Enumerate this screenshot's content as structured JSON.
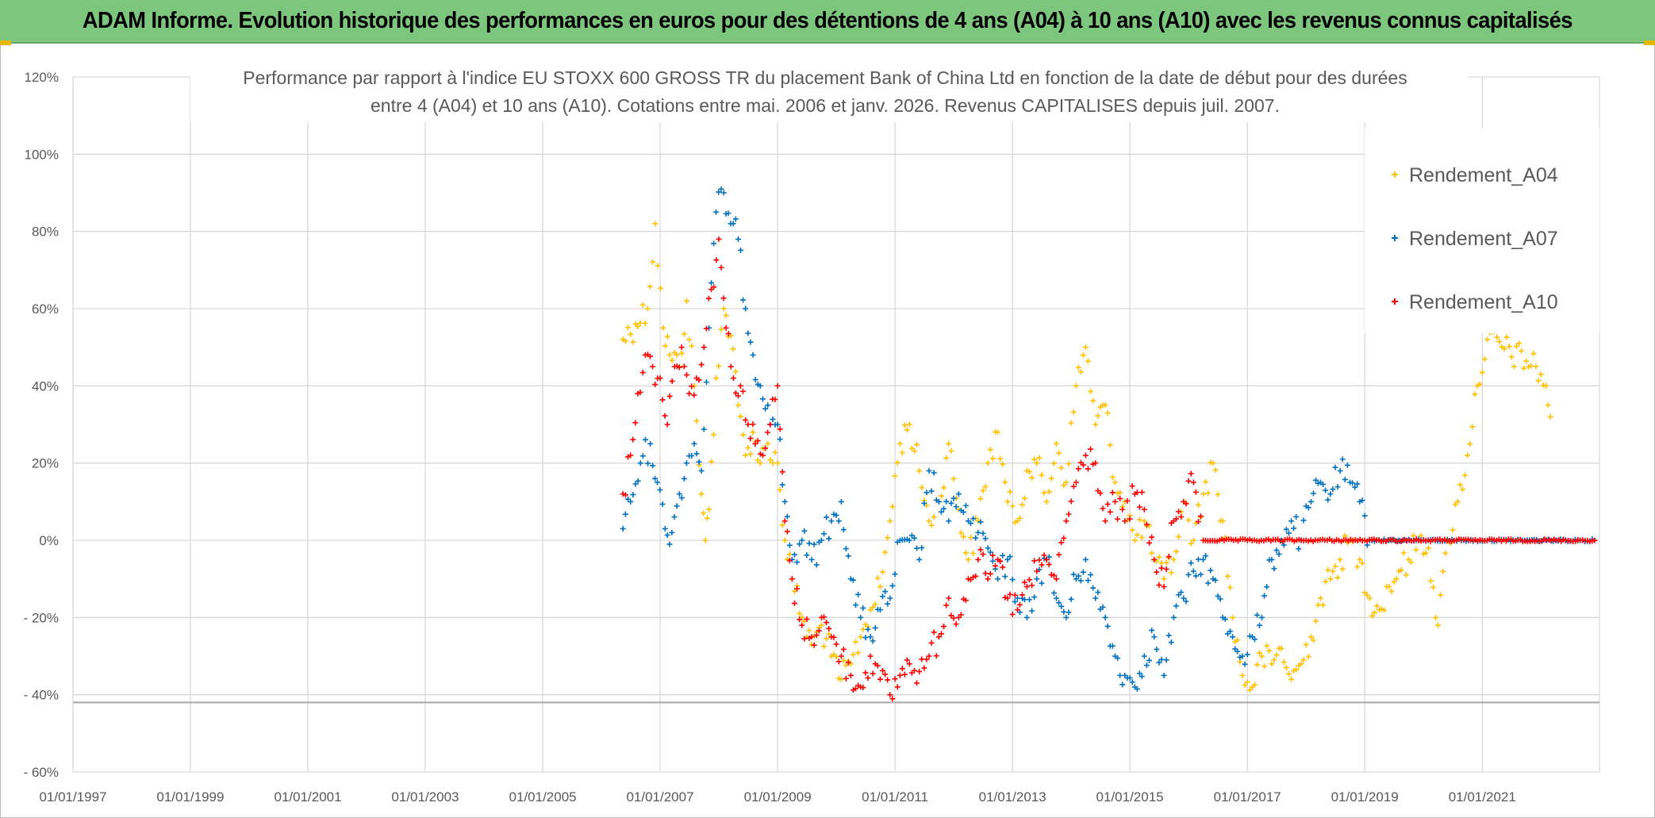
{
  "header": {
    "title": "ADAM Informe. Evolution historique des performances en euros pour des détentions de 4 ans (A04) à 10 ans (A10) avec les revenus connus capitalisés"
  },
  "chart_data": {
    "type": "scatter",
    "title_lines": [
      "Performance par rapport à l'indice EU STOXX 600 GROSS TR  du placement Bank of China Ltd en fonction de la date de début pour des durées",
      "entre 4 (A04) et 10 ans (A10). Cotations entre mai. 2006 et janv. 2026. Revenus CAPITALISES depuis juil. 2007."
    ],
    "xlabel": "",
    "ylabel": "",
    "xlim": [
      "1997-01-01",
      "2022-12-31"
    ],
    "ylim": [
      -0.6,
      1.2
    ],
    "x_tick_labels": [
      "01/01/1997",
      "01/01/1999",
      "01/01/2001",
      "01/01/2003",
      "01/01/2005",
      "01/01/2007",
      "01/01/2009",
      "01/01/2011",
      "01/01/2013",
      "01/01/2015",
      "01/01/2017",
      "01/01/2019",
      "01/01/2021"
    ],
    "y_tick_labels": [
      "- 60%",
      "- 40%",
      "- 20%",
      "0%",
      "20%",
      "40%",
      "60%",
      "80%",
      "100%",
      "120%"
    ],
    "y_tick_values": [
      -0.6,
      -0.4,
      -0.2,
      0,
      0.2,
      0.4,
      0.6,
      0.8,
      1.0,
      1.2
    ],
    "grid": true,
    "legend_position": "top-right",
    "series": [
      {
        "name": "Rendement_A04",
        "color": "#ffc000",
        "marker": "plus",
        "points": [
          [
            "2006-05-15",
            0.52
          ],
          [
            "2006-08-01",
            0.56
          ],
          [
            "2006-10-15",
            0.6
          ],
          [
            "2006-12-01",
            0.82
          ],
          [
            "2007-01-20",
            0.55
          ],
          [
            "2007-03-01",
            0.48
          ],
          [
            "2007-05-01",
            0.45
          ],
          [
            "2007-06-15",
            0.62
          ],
          [
            "2007-08-01",
            0.4
          ],
          [
            "2007-09-15",
            0.12
          ],
          [
            "2007-10-10",
            0.0
          ],
          [
            "2007-11-01",
            0.08
          ],
          [
            "2007-12-15",
            0.42
          ],
          [
            "2008-02-01",
            0.6
          ],
          [
            "2008-03-15",
            0.53
          ],
          [
            "2008-05-01",
            0.35
          ],
          [
            "2008-06-15",
            0.22
          ],
          [
            "2008-08-01",
            0.28
          ],
          [
            "2008-09-15",
            0.2
          ],
          [
            "2008-11-01",
            0.25
          ],
          [
            "2009-01-01",
            0.2
          ],
          [
            "2009-02-15",
            0.0
          ],
          [
            "2009-04-01",
            -0.1
          ],
          [
            "2009-06-01",
            -0.2
          ],
          [
            "2009-08-01",
            -0.27
          ],
          [
            "2009-10-01",
            -0.22
          ],
          [
            "2009-12-01",
            -0.3
          ],
          [
            "2010-02-01",
            -0.36
          ],
          [
            "2010-04-01",
            -0.32
          ],
          [
            "2010-06-01",
            -0.25
          ],
          [
            "2010-08-01",
            -0.18
          ],
          [
            "2010-10-01",
            -0.12
          ],
          [
            "2010-12-01",
            0.05
          ],
          [
            "2011-02-01",
            0.25
          ],
          [
            "2011-04-01",
            0.3
          ],
          [
            "2011-06-01",
            0.18
          ],
          [
            "2011-08-01",
            0.05
          ],
          [
            "2011-10-01",
            0.1
          ],
          [
            "2011-12-01",
            0.25
          ],
          [
            "2012-02-01",
            0.08
          ],
          [
            "2012-04-01",
            -0.05
          ],
          [
            "2012-06-01",
            0.05
          ],
          [
            "2012-08-01",
            0.2
          ],
          [
            "2012-10-01",
            0.28
          ],
          [
            "2012-12-01",
            0.1
          ],
          [
            "2013-02-01",
            0.05
          ],
          [
            "2013-04-01",
            0.18
          ],
          [
            "2013-06-01",
            0.2
          ],
          [
            "2013-08-01",
            0.1
          ],
          [
            "2013-10-01",
            0.25
          ],
          [
            "2013-12-01",
            0.15
          ],
          [
            "2014-02-01",
            0.4
          ],
          [
            "2014-04-01",
            0.5
          ],
          [
            "2014-06-01",
            0.3
          ],
          [
            "2014-08-01",
            0.35
          ],
          [
            "2014-10-01",
            0.15
          ],
          [
            "2014-12-01",
            0.1
          ],
          [
            "2015-02-01",
            0.0
          ],
          [
            "2015-04-01",
            0.05
          ],
          [
            "2015-06-01",
            -0.05
          ],
          [
            "2015-08-01",
            -0.1
          ],
          [
            "2015-10-01",
            -0.05
          ],
          [
            "2015-12-01",
            0.1
          ],
          [
            "2016-02-01",
            0.0
          ],
          [
            "2016-04-01",
            0.12
          ],
          [
            "2016-06-01",
            0.2
          ],
          [
            "2016-08-01",
            0.05
          ],
          [
            "2016-10-01",
            -0.2
          ],
          [
            "2016-12-01",
            -0.35
          ],
          [
            "2017-02-01",
            -0.38
          ],
          [
            "2017-04-01",
            -0.3
          ],
          [
            "2017-06-01",
            -0.32
          ],
          [
            "2017-08-01",
            -0.28
          ],
          [
            "2017-10-01",
            -0.36
          ],
          [
            "2017-12-01",
            -0.32
          ],
          [
            "2018-02-01",
            -0.25
          ],
          [
            "2018-04-01",
            -0.15
          ],
          [
            "2018-06-01",
            -0.1
          ],
          [
            "2018-08-01",
            -0.05
          ],
          [
            "2018-10-01",
            0.0
          ],
          [
            "2018-12-01",
            -0.05
          ],
          [
            "2019-02-01",
            -0.15
          ],
          [
            "2019-04-01",
            -0.18
          ],
          [
            "2019-06-01",
            -0.12
          ],
          [
            "2019-08-01",
            -0.08
          ],
          [
            "2019-10-01",
            -0.05
          ],
          [
            "2019-12-01",
            0.0
          ],
          [
            "2020-02-01",
            -0.02
          ],
          [
            "2020-04-01",
            -0.22
          ],
          [
            "2020-06-01",
            0.0
          ],
          [
            "2020-08-01",
            0.1
          ],
          [
            "2020-10-01",
            0.22
          ],
          [
            "2020-12-01",
            0.4
          ],
          [
            "2021-02-01",
            0.52
          ],
          [
            "2021-12-01",
            0.45
          ],
          [
            "2022-02-01",
            0.4
          ],
          [
            "2022-03-01",
            0.32
          ]
        ]
      },
      {
        "name": "Rendement_A07",
        "color": "#0070c0",
        "marker": "plus",
        "points": [
          [
            "2006-05-15",
            0.03
          ],
          [
            "2006-07-01",
            0.1
          ],
          [
            "2006-09-01",
            0.2
          ],
          [
            "2006-11-01",
            0.25
          ],
          [
            "2006-12-15",
            0.15
          ],
          [
            "2007-02-01",
            0.03
          ],
          [
            "2007-03-15",
            0.02
          ],
          [
            "2007-05-01",
            0.12
          ],
          [
            "2007-06-15",
            0.2
          ],
          [
            "2007-08-01",
            0.25
          ],
          [
            "2007-09-15",
            0.18
          ],
          [
            "2007-11-01",
            0.55
          ],
          [
            "2007-12-15",
            0.85
          ],
          [
            "2008-02-01",
            0.9
          ],
          [
            "2008-03-15",
            0.82
          ],
          [
            "2008-05-01",
            0.78
          ],
          [
            "2008-06-15",
            0.6
          ],
          [
            "2008-08-01",
            0.48
          ],
          [
            "2008-09-15",
            0.4
          ],
          [
            "2008-11-01",
            0.35
          ],
          [
            "2009-01-01",
            0.3
          ],
          [
            "2009-02-15",
            0.1
          ],
          [
            "2009-04-01",
            -0.05
          ],
          [
            "2009-06-01",
            0.0
          ],
          [
            "2009-08-01",
            -0.05
          ],
          [
            "2009-10-01",
            0.0
          ],
          [
            "2009-12-01",
            0.05
          ],
          [
            "2010-02-01",
            0.1
          ],
          [
            "2010-04-01",
            -0.1
          ],
          [
            "2010-06-01",
            -0.2
          ],
          [
            "2010-08-01",
            -0.25
          ],
          [
            "2010-10-01",
            -0.18
          ],
          [
            "2010-12-01",
            -0.15
          ],
          [
            "2011-02-01",
            0.0
          ],
          [
            "2011-04-01",
            0.0
          ],
          [
            "2011-06-01",
            -0.05
          ],
          [
            "2011-08-01",
            0.18
          ],
          [
            "2011-10-01",
            0.1
          ],
          [
            "2011-12-01",
            0.05
          ],
          [
            "2012-02-01",
            0.12
          ],
          [
            "2012-04-01",
            0.05
          ],
          [
            "2012-06-01",
            0.02
          ],
          [
            "2012-08-01",
            -0.02
          ],
          [
            "2012-10-01",
            -0.1
          ],
          [
            "2012-12-01",
            -0.05
          ],
          [
            "2013-02-01",
            -0.15
          ],
          [
            "2013-04-01",
            -0.2
          ],
          [
            "2013-06-01",
            -0.1
          ],
          [
            "2013-08-01",
            -0.05
          ],
          [
            "2013-10-01",
            -0.15
          ],
          [
            "2013-12-01",
            -0.2
          ],
          [
            "2014-02-01",
            -0.1
          ],
          [
            "2014-04-01",
            -0.05
          ],
          [
            "2014-06-01",
            -0.15
          ],
          [
            "2014-08-01",
            -0.2
          ],
          [
            "2014-10-01",
            -0.3
          ],
          [
            "2014-12-01",
            -0.35
          ],
          [
            "2015-02-01",
            -0.38
          ],
          [
            "2015-04-01",
            -0.3
          ],
          [
            "2015-06-01",
            -0.25
          ],
          [
            "2015-08-01",
            -0.35
          ],
          [
            "2015-10-01",
            -0.2
          ],
          [
            "2015-12-01",
            -0.15
          ],
          [
            "2016-02-01",
            -0.08
          ],
          [
            "2016-04-01",
            -0.05
          ],
          [
            "2016-06-01",
            -0.1
          ],
          [
            "2016-08-01",
            -0.2
          ],
          [
            "2016-10-01",
            -0.25
          ],
          [
            "2016-12-01",
            -0.3
          ],
          [
            "2017-02-01",
            -0.25
          ],
          [
            "2017-04-01",
            -0.2
          ],
          [
            "2017-06-01",
            -0.05
          ],
          [
            "2017-08-01",
            0.0
          ],
          [
            "2017-10-01",
            0.05
          ],
          [
            "2017-12-01",
            0.0
          ],
          [
            "2018-02-01",
            0.1
          ],
          [
            "2018-04-01",
            0.15
          ],
          [
            "2018-06-01",
            0.12
          ],
          [
            "2018-08-01",
            0.18
          ],
          [
            "2018-10-01",
            0.15
          ],
          [
            "2018-12-01",
            0.1
          ],
          [
            "2019-02-01",
            0.0
          ],
          [
            "2019-04-01",
            0.0
          ],
          [
            "2019-08-01",
            0.0
          ],
          [
            "2020-02-01",
            0.0
          ],
          [
            "2021-02-01",
            0.0
          ],
          [
            "2022-02-01",
            0.0
          ],
          [
            "2022-12-01",
            0.0
          ]
        ]
      },
      {
        "name": "Rendement_A10",
        "color": "#ff0000",
        "marker": "plus",
        "points": [
          [
            "2006-05-15",
            0.12
          ],
          [
            "2006-07-01",
            0.22
          ],
          [
            "2006-08-15",
            0.38
          ],
          [
            "2006-10-01",
            0.48
          ],
          [
            "2006-11-15",
            0.45
          ],
          [
            "2007-01-01",
            0.42
          ],
          [
            "2007-02-15",
            0.3
          ],
          [
            "2007-04-01",
            0.45
          ],
          [
            "2007-05-15",
            0.5
          ],
          [
            "2007-07-01",
            0.38
          ],
          [
            "2007-08-15",
            0.42
          ],
          [
            "2007-10-01",
            0.5
          ],
          [
            "2007-11-15",
            0.65
          ],
          [
            "2008-01-01",
            0.78
          ],
          [
            "2008-02-15",
            0.55
          ],
          [
            "2008-04-01",
            0.42
          ],
          [
            "2008-05-15",
            0.4
          ],
          [
            "2008-07-01",
            0.3
          ],
          [
            "2008-08-15",
            0.25
          ],
          [
            "2008-10-01",
            0.22
          ],
          [
            "2008-11-15",
            0.3
          ],
          [
            "2009-01-01",
            0.4
          ],
          [
            "2009-02-15",
            0.05
          ],
          [
            "2009-04-01",
            -0.1
          ],
          [
            "2009-06-01",
            -0.22
          ],
          [
            "2009-08-01",
            -0.25
          ],
          [
            "2009-10-01",
            -0.2
          ],
          [
            "2009-12-01",
            -0.25
          ],
          [
            "2010-02-01",
            -0.3
          ],
          [
            "2010-04-01",
            -0.35
          ],
          [
            "2010-06-01",
            -0.38
          ],
          [
            "2010-08-01",
            -0.3
          ],
          [
            "2010-10-01",
            -0.36
          ],
          [
            "2010-12-01",
            -0.4
          ],
          [
            "2011-02-01",
            -0.35
          ],
          [
            "2011-04-01",
            -0.32
          ],
          [
            "2011-06-01",
            -0.34
          ],
          [
            "2011-08-01",
            -0.3
          ],
          [
            "2011-10-01",
            -0.25
          ],
          [
            "2011-12-01",
            -0.15
          ],
          [
            "2012-02-01",
            -0.2
          ],
          [
            "2012-04-01",
            -0.1
          ],
          [
            "2012-06-01",
            -0.05
          ],
          [
            "2012-08-01",
            -0.1
          ],
          [
            "2012-10-01",
            -0.05
          ],
          [
            "2012-12-01",
            -0.15
          ],
          [
            "2013-02-01",
            -0.18
          ],
          [
            "2013-04-01",
            -0.12
          ],
          [
            "2013-06-01",
            -0.08
          ],
          [
            "2013-08-01",
            -0.05
          ],
          [
            "2013-10-01",
            -0.1
          ],
          [
            "2013-12-01",
            0.05
          ],
          [
            "2014-02-01",
            0.15
          ],
          [
            "2014-04-01",
            0.22
          ],
          [
            "2014-06-01",
            0.2
          ],
          [
            "2014-08-01",
            0.05
          ],
          [
            "2014-10-01",
            0.1
          ],
          [
            "2014-12-01",
            0.05
          ],
          [
            "2015-02-01",
            0.12
          ],
          [
            "2015-04-01",
            0.08
          ],
          [
            "2015-06-01",
            -0.05
          ],
          [
            "2015-08-01",
            -0.12
          ],
          [
            "2015-10-01",
            0.05
          ],
          [
            "2015-12-01",
            0.1
          ],
          [
            "2016-02-01",
            0.15
          ],
          [
            "2016-04-01",
            0.0
          ],
          [
            "2017-01-01",
            0.0
          ],
          [
            "2018-01-01",
            0.0
          ],
          [
            "2019-01-01",
            0.0
          ],
          [
            "2020-01-01",
            0.0
          ],
          [
            "2021-01-01",
            0.0
          ],
          [
            "2022-12-01",
            0.0
          ]
        ]
      }
    ]
  }
}
